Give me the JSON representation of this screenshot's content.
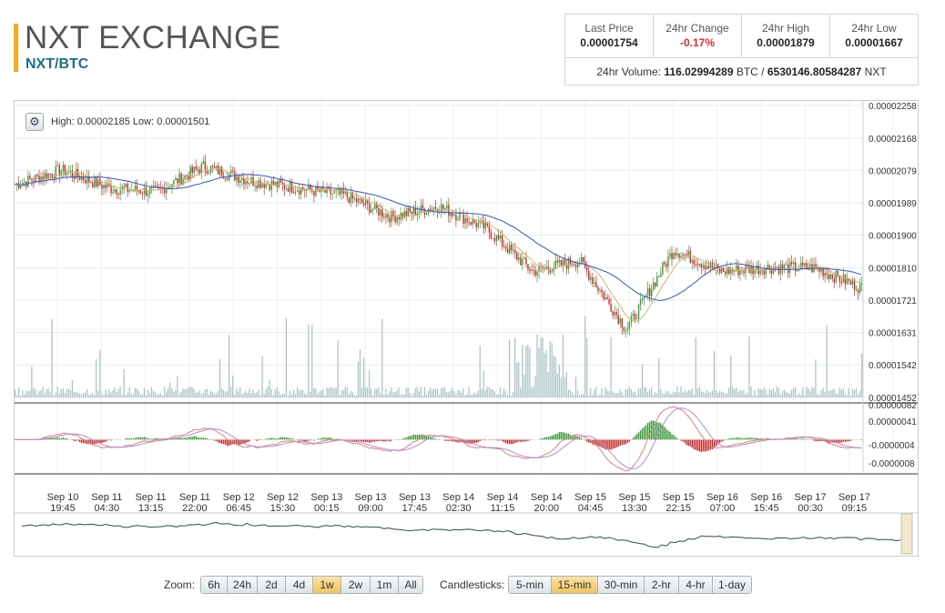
{
  "header": {
    "title": "NXT EXCHANGE",
    "pair": "NXT/BTC"
  },
  "stats": {
    "cells": [
      {
        "label": "Last Price",
        "value": "0.00001754"
      },
      {
        "label": "24hr Change",
        "value": "-0.17%"
      },
      {
        "label": "24hr High",
        "value": "0.00001879"
      },
      {
        "label": "24hr Low",
        "value": "0.00001667"
      }
    ],
    "volume_label": "24hr Volume:",
    "volume_btc": "116.02994289",
    "volume_btc_unit": "BTC /",
    "volume_nxt": "6530146.80584287",
    "volume_nxt_unit": "NXT"
  },
  "chart": {
    "high_low_text": "High: 0.00002185  Low: 0.00001501",
    "price_ticks": [
      "0.00002258",
      "0.00002168",
      "0.00002079",
      "0.00001989",
      "0.00001900",
      "0.00001810",
      "0.00001721",
      "0.00001631",
      "0.00001542",
      "0.00001452"
    ],
    "macd_ticks": [
      "0.00000082",
      "0.00000041",
      "-0.0000004",
      "-0.0000008"
    ],
    "time_labels": [
      [
        "Sep 10",
        "19:45"
      ],
      [
        "Sep 11",
        "04:30"
      ],
      [
        "Sep 11",
        "13:15"
      ],
      [
        "Sep 11",
        "22:00"
      ],
      [
        "Sep 12",
        "06:45"
      ],
      [
        "Sep 12",
        "15:30"
      ],
      [
        "Sep 13",
        "00:15"
      ],
      [
        "Sep 13",
        "09:00"
      ],
      [
        "Sep 13",
        "17:45"
      ],
      [
        "Sep 14",
        "02:30"
      ],
      [
        "Sep 14",
        "11:15"
      ],
      [
        "Sep 14",
        "20:00"
      ],
      [
        "Sep 15",
        "04:45"
      ],
      [
        "Sep 15",
        "13:30"
      ],
      [
        "Sep 15",
        "22:15"
      ],
      [
        "Sep 16",
        "07:00"
      ],
      [
        "Sep 16",
        "15:45"
      ],
      [
        "Sep 17",
        "00:30"
      ],
      [
        "Sep 17",
        "09:15"
      ]
    ],
    "colors": {
      "up": "#3a9b3a",
      "down": "#c42a2a",
      "ma_fast": "#c9b86a",
      "ma_slow": "#3355cc",
      "volume": "#a9c1c4",
      "navigator": "#2d4a52"
    }
  },
  "zoom": {
    "label": "Zoom:",
    "options": [
      "6h",
      "24h",
      "2d",
      "4d",
      "1w",
      "2w",
      "1m",
      "All"
    ],
    "active": "1w"
  },
  "candles": {
    "label": "Candlesticks:",
    "options": [
      "5-min",
      "15-min",
      "30-min",
      "2-hr",
      "4-hr",
      "1-day"
    ],
    "active": "15-min"
  },
  "chart_data": {
    "type": "candlestick",
    "series": [
      {
        "name": "price_path",
        "x": [
          "Sep 10 19:45",
          "Sep 11 04:30",
          "Sep 11 13:15",
          "Sep 11 22:00",
          "Sep 12 06:45",
          "Sep 12 15:30",
          "Sep 13 00:15",
          "Sep 13 09:00",
          "Sep 13 17:45",
          "Sep 14 02:30",
          "Sep 14 11:15",
          "Sep 14 20:00",
          "Sep 15 04:45",
          "Sep 15 13:30",
          "Sep 15 22:15",
          "Sep 16 07:00",
          "Sep 16 15:45",
          "Sep 17 00:30",
          "Sep 17 09:15"
        ],
        "values": [
          2.04e-05,
          2.08e-05,
          2.03e-05,
          2.02e-05,
          2.09e-05,
          2.05e-05,
          2.03e-05,
          2.01e-05,
          1.95e-05,
          1.98e-05,
          1.92e-05,
          1.8e-05,
          1.83e-05,
          1.64e-05,
          1.86e-05,
          1.8e-05,
          1.81e-05,
          1.81e-05,
          1.754e-05
        ]
      }
    ],
    "ylim": [
      1.452e-05,
      2.258e-05
    ]
  }
}
